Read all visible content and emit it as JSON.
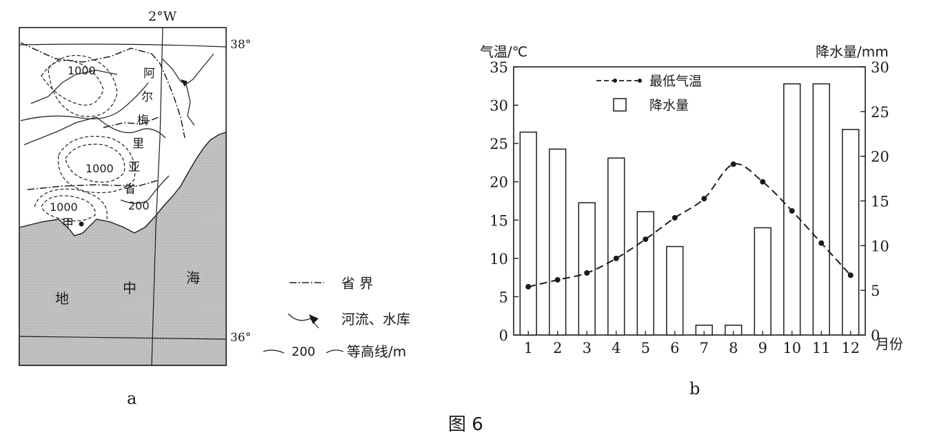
{
  "map_a": {
    "top_lon_label": "2°W",
    "lat_labels": {
      "north": "38°",
      "south": "36°"
    },
    "province_chars": [
      "阿",
      "尔",
      "梅",
      "里",
      "亚",
      "省"
    ],
    "contour_labels": [
      "1000",
      "1000",
      "1000",
      "200"
    ],
    "point_label": "甲",
    "sea_chars": [
      "地",
      "中",
      "海"
    ],
    "caption": "a"
  },
  "legend_a": {
    "items": [
      {
        "symbol": "border-line",
        "label": "省  界"
      },
      {
        "symbol": "river-reservoir",
        "label": "河流、水库"
      },
      {
        "symbol": "contour-line",
        "value": "200",
        "label": "等高线/m"
      }
    ]
  },
  "chart_data": {
    "type": "bar",
    "caption": "b",
    "title": "",
    "xlabel": "月份",
    "ylabel_left": "气温/℃",
    "ylabel_right": "降水量/mm",
    "categories": [
      "1",
      "2",
      "3",
      "4",
      "5",
      "6",
      "7",
      "8",
      "9",
      "10",
      "11",
      "12"
    ],
    "ylim_left": [
      0,
      35
    ],
    "ylim_right": [
      0,
      30
    ],
    "yticks_left": [
      0,
      5,
      10,
      15,
      20,
      25,
      30,
      35
    ],
    "yticks_right": [
      0,
      5,
      10,
      15,
      20,
      25,
      30
    ],
    "series": [
      {
        "name": "降水量",
        "type": "bar",
        "axis": "right",
        "values": [
          22.7,
          20.8,
          14.8,
          19.8,
          13.8,
          9.9,
          1.1,
          1.1,
          12.0,
          28.1,
          28.1,
          23.0
        ]
      },
      {
        "name": "最低气温",
        "type": "line",
        "axis": "left",
        "style": "dashed-with-dots",
        "values": [
          6.3,
          7.2,
          8.1,
          10.0,
          12.5,
          15.3,
          17.8,
          22.3,
          20.0,
          16.2,
          12.0,
          7.8
        ]
      }
    ],
    "legend": {
      "placement": "top-center"
    }
  },
  "figure_caption": "图 6"
}
